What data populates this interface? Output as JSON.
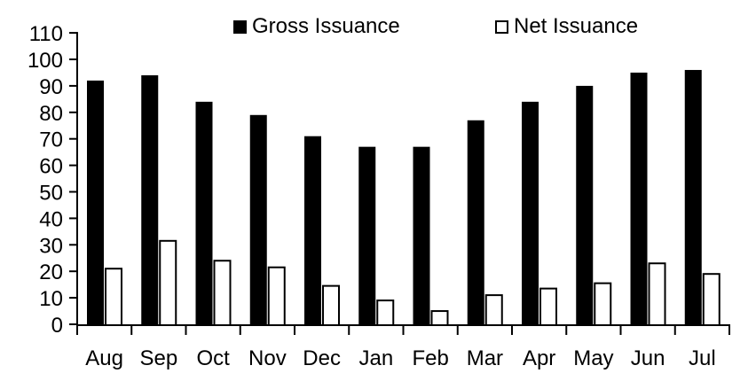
{
  "chart_data": {
    "type": "bar",
    "title": "",
    "xlabel": "",
    "ylabel": "",
    "categories": [
      "Aug",
      "Sep",
      "Oct",
      "Nov",
      "Dec",
      "Jan",
      "Feb",
      "Mar",
      "Apr",
      "May",
      "Jun",
      "Jul"
    ],
    "series": [
      {
        "name": "Gross Issuance",
        "fill": "#000000",
        "outline": "#000000",
        "values": [
          92,
          94,
          84,
          79,
          71,
          67,
          67,
          77,
          84,
          90,
          95,
          96
        ]
      },
      {
        "name": "Net Issuance",
        "fill": "#FFFFFF",
        "outline": "#000000",
        "values": [
          21,
          31.5,
          24,
          21.5,
          14.5,
          9,
          5,
          11,
          13.5,
          15.5,
          23,
          19
        ]
      }
    ],
    "ylim": [
      0,
      110
    ],
    "ytick_step": 10,
    "grid": false,
    "legend_position": "top"
  },
  "colors": {
    "background": "#FFFFFF",
    "axis": "#000000",
    "text": "#000000"
  }
}
